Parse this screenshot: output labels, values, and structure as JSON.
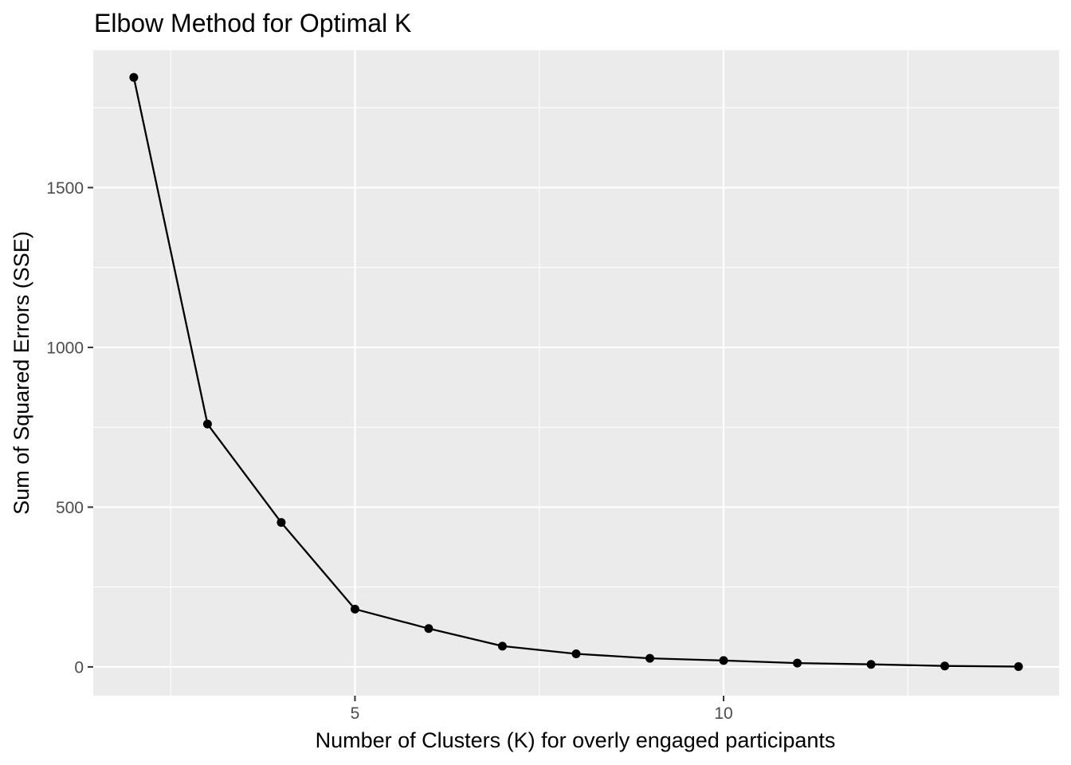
{
  "chart_data": {
    "type": "line",
    "title": "Elbow Method for Optimal K",
    "xlabel": "Number of Clusters (K) for overly engaged participants",
    "ylabel": "Sum of Squared Errors (SSE)",
    "xlim": [
      1.45,
      14.55
    ],
    "ylim": [
      -90,
      1930
    ],
    "x_ticks": [
      5,
      10
    ],
    "x_tick_labels": [
      "5",
      "10"
    ],
    "y_ticks": [
      0,
      500,
      1000,
      1500
    ],
    "y_tick_labels": [
      "0",
      "500",
      "1000",
      "1500"
    ],
    "grid": true,
    "legend": "none",
    "series": [
      {
        "x": [
          2,
          3,
          4,
          5,
          6,
          7,
          8,
          9,
          10,
          11,
          12,
          13,
          14
        ],
        "y": [
          1845,
          760,
          452,
          181,
          120,
          65,
          41,
          27,
          20,
          12,
          8,
          3,
          1
        ],
        "color": "#000000"
      }
    ],
    "colors": {
      "panel": "#ebebeb",
      "grid": "#ffffff",
      "line": "#000000",
      "tick_text": "#4d4d4d"
    }
  }
}
